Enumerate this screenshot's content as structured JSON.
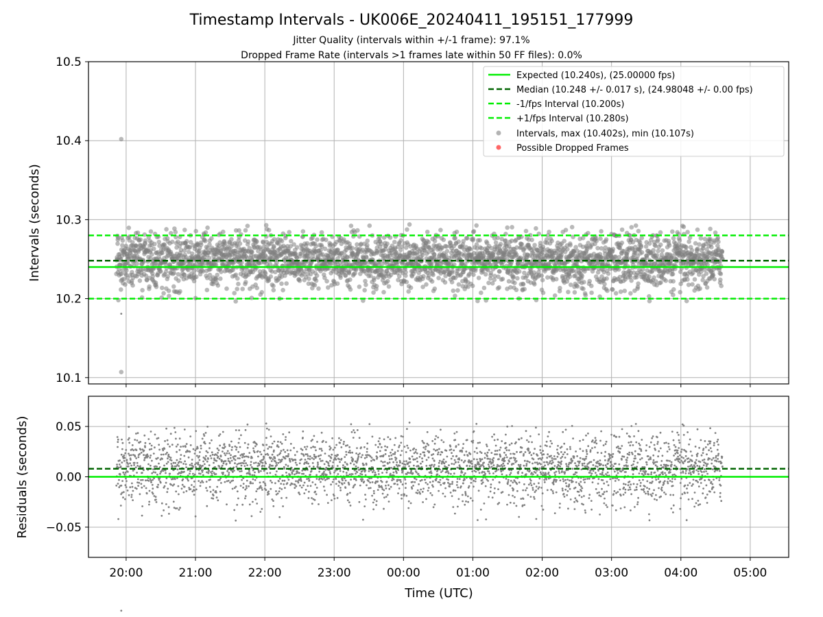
{
  "chart_data": [
    {
      "type": "scatter",
      "title": "Timestamp Intervals - UK006E_20240411_195151_177999",
      "subtitle_lines": [
        "Jitter Quality (intervals within +/-1 frame): 97.1%",
        "Dropped Frame Rate (intervals >1 frames late within 50 FF files): 0.0%"
      ],
      "ylabel": "Intervals (seconds)",
      "ylim": [
        10.092,
        10.5
      ],
      "yticks": [
        10.1,
        10.2,
        10.3,
        10.4,
        10.5
      ],
      "ytick_labels": [
        "10.1",
        "10.2",
        "10.3",
        "10.4",
        "10.5"
      ],
      "xlim_hours": [
        -0.543,
        9.555
      ],
      "xticks_hours": [
        0,
        1,
        2,
        3,
        4,
        5,
        6,
        7,
        8,
        9
      ],
      "grid": true,
      "legend_position": "upper right",
      "hlines": [
        {
          "name": "Expected (10.240s), (25.00000 fps)",
          "y": 10.24,
          "color": "#00ee00",
          "style": "solid"
        },
        {
          "name": "Median (10.248 +/- 0.017 s), (24.98048 +/- 0.00 fps)",
          "y": 10.248,
          "color": "#006400",
          "style": "dashed"
        },
        {
          "name": "-1/fps Interval (10.200s)",
          "y": 10.2,
          "color": "#00ee00",
          "style": "dashed"
        },
        {
          "name": "+1/fps Interval (10.280s)",
          "y": 10.28,
          "color": "#00ee00",
          "style": "dashed"
        }
      ],
      "series": [
        {
          "name": "Intervals, max (10.402s), min (10.107s)",
          "color": "#808080",
          "x_range_hours": [
            -0.14,
            8.6
          ],
          "count": 3080,
          "center": 10.248,
          "spread": 0.017,
          "min": 10.107,
          "max": 10.402,
          "min_x_hours": -0.07,
          "max_x_hours": -0.07
        },
        {
          "name": "Possible Dropped Frames",
          "color": "#ff0000",
          "count": 0
        }
      ]
    },
    {
      "type": "scatter",
      "xlabel": "Time (UTC)",
      "ylabel": "Residuals (seconds)",
      "ylim": [
        -0.08,
        0.08
      ],
      "yticks": [
        -0.05,
        0.0,
        0.05
      ],
      "ytick_labels": [
        "−0.05",
        "0.00",
        "0.05"
      ],
      "x_tick_labels": [
        "20:00",
        "21:00",
        "22:00",
        "23:00",
        "00:00",
        "01:00",
        "02:00",
        "03:00",
        "04:00",
        "05:00"
      ],
      "grid": true,
      "hlines": [
        {
          "y": 0.0,
          "color": "#00ee00",
          "style": "solid"
        },
        {
          "y": 0.008,
          "color": "#006400",
          "style": "dashed"
        }
      ],
      "series": [
        {
          "name": "Residuals",
          "color": "#808080",
          "x_range_hours": [
            -0.14,
            8.6
          ],
          "count": 3080,
          "center": 0.008,
          "spread": 0.017
        }
      ]
    }
  ]
}
